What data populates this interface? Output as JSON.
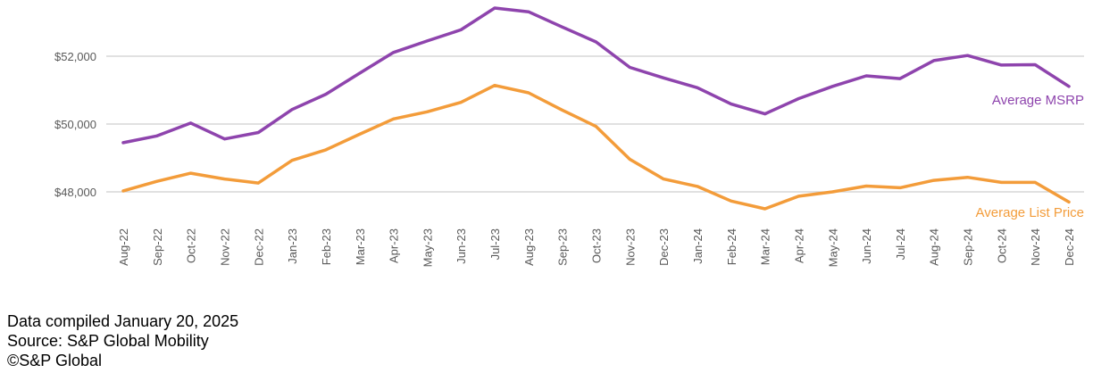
{
  "chart_data": {
    "type": "line",
    "title": "",
    "xlabel": "",
    "ylabel": "",
    "categories": [
      "Aug-22",
      "Sep-22",
      "Oct-22",
      "Nov-22",
      "Dec-22",
      "Jan-23",
      "Feb-23",
      "Mar-23",
      "Apr-23",
      "May-23",
      "Jun-23",
      "Jul-23",
      "Aug-23",
      "Sep-23",
      "Oct-23",
      "Nov-23",
      "Dec-23",
      "Jan-24",
      "Feb-24",
      "Mar-24",
      "Apr-24",
      "May-24",
      "Jun-24",
      "Jul-24",
      "Aug-24",
      "Sep-24",
      "Oct-24",
      "Nov-24",
      "Dec-24"
    ],
    "ylim": [
      46900,
      53600
    ],
    "yticks": [
      48000,
      50000,
      52000
    ],
    "ytick_labels": [
      "$48,000",
      "$50,000",
      "$52,000"
    ],
    "grid": true,
    "series": [
      {
        "name": "Average MSRP",
        "color": "#8E44AD",
        "values": [
          49450,
          49650,
          50030,
          49560,
          49750,
          50430,
          50880,
          51500,
          52110,
          52450,
          52780,
          53420,
          53310,
          52860,
          52420,
          51670,
          51360,
          51070,
          50590,
          50300,
          50750,
          51110,
          51420,
          51340,
          51870,
          52020,
          51740,
          51750,
          51110
        ]
      },
      {
        "name": "Average List Price",
        "color": "#F39C3A",
        "values": [
          48030,
          48310,
          48550,
          48380,
          48260,
          48930,
          49240,
          49700,
          50150,
          50360,
          50640,
          51140,
          50920,
          50410,
          49930,
          48960,
          48380,
          48160,
          47730,
          47500,
          47870,
          48000,
          48170,
          48120,
          48340,
          48430,
          48280,
          48280,
          47700
        ]
      }
    ]
  },
  "footer": {
    "line1": "Data compiled January 20, 2025",
    "line2": "Source: S&P Global Mobility",
    "line3": "©S&P Global"
  }
}
